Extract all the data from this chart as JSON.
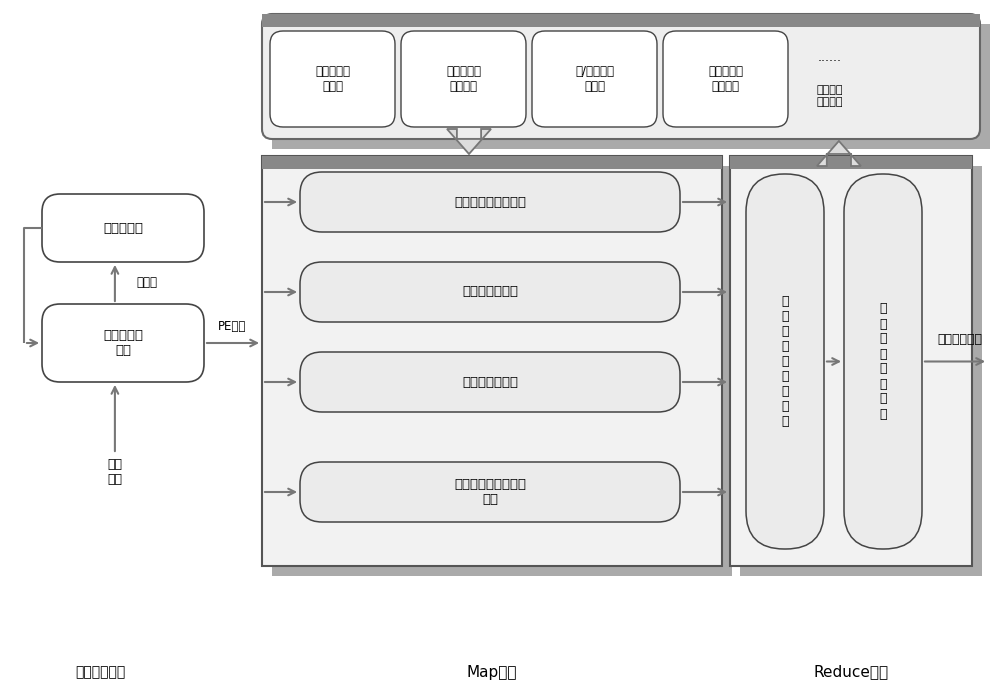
{
  "bg_color": "#ffffff",
  "panel_fill": "#f0f0f0",
  "panel_shadow": "#999999",
  "panel_border": "#555555",
  "box_fill": "#ffffff",
  "box_fill_inner": "#ebebeb",
  "box_edge": "#444444",
  "arrow_color": "#777777",
  "fat_arrow_fill": "#dddddd",
  "fat_arrow_edge": "#777777",
  "top_modules": [
    "快速特征提\n取模块",
    "鉴定器性能\n评估模块",
    "黑/白样本训\n练模块",
    "分析员人工\n鉴定模块"
  ],
  "top_extra_dots": "......",
  "top_extra_label": "后台定时\n处理阶段",
  "map_boxes": [
    "特征扫描鉴定器集合",
    "静态鉴定器集合",
    "动态鉴定器集合",
    "企业杀毒软件鉴定器\n集合"
  ],
  "left_box1": "解压缩模块",
  "left_box2": "文件类型检\n测器",
  "label_compressed": "压缩包",
  "label_pe": "PE文件",
  "label_upload": "上传\n样本",
  "reduce_box1_text": "鉴\n定\n结\n果\n跟\n踪\n存\n储\n区",
  "reduce_box2_text": "鉴\n定\n结\n果\n综\n合\n集\n成",
  "label_final": "最终结果输出",
  "stage_labels": [
    "样本准备阶段",
    "Map阶段",
    "Reduce阶段"
  ],
  "fig_width": 10.0,
  "fig_height": 6.94
}
